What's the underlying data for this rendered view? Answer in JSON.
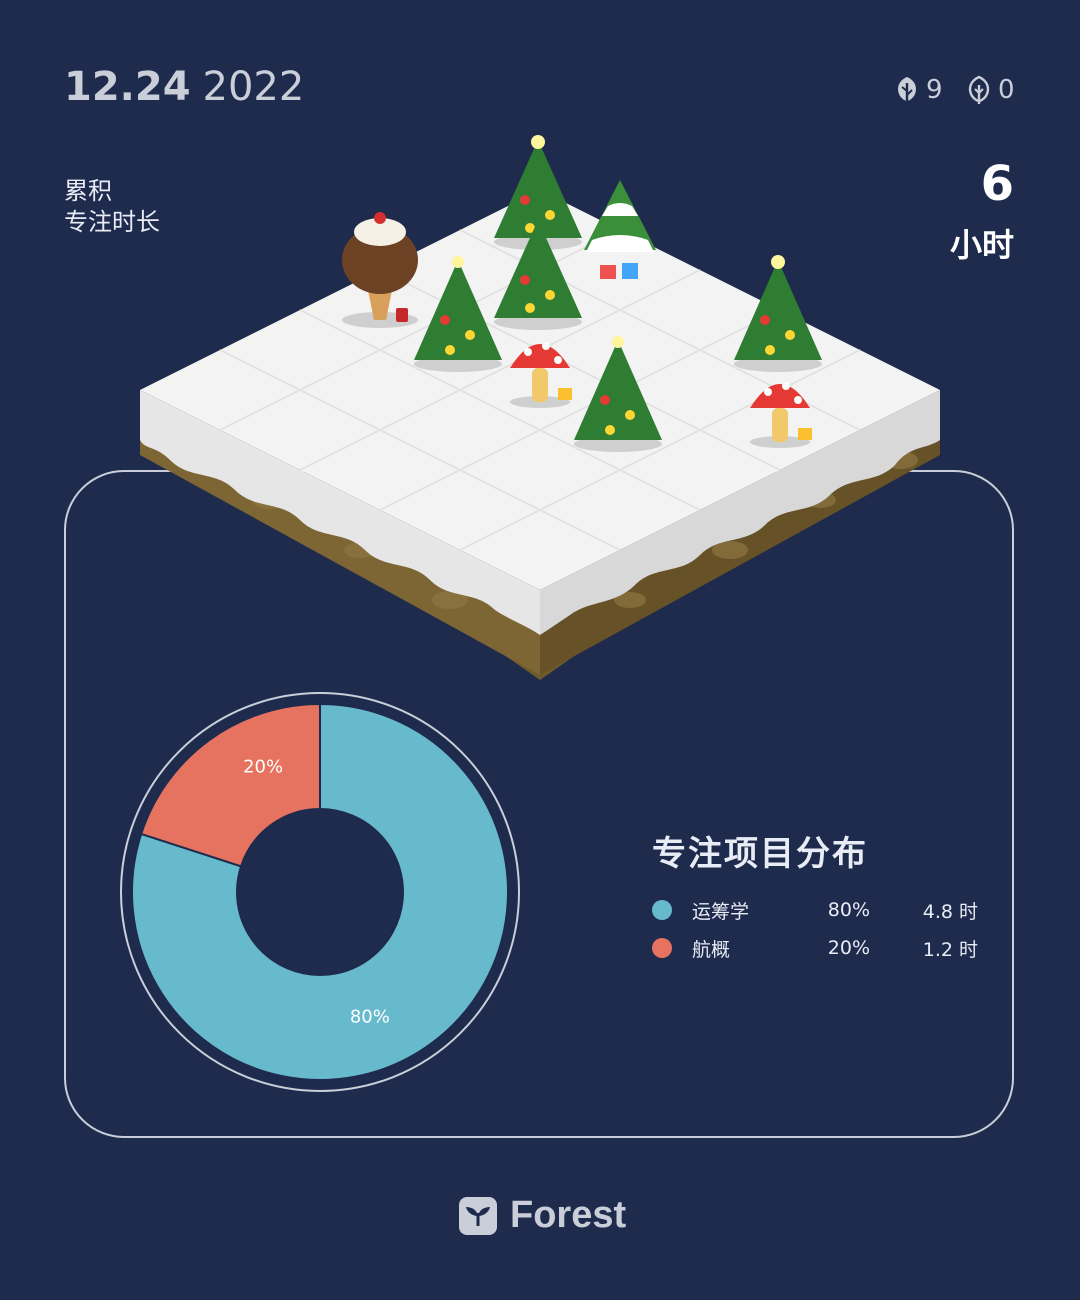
{
  "header": {
    "date": "12.24",
    "year": "2022",
    "healthy_trees": "9",
    "dead_trees": "0"
  },
  "summary": {
    "label_line1": "累积",
    "label_line2": "专注时长",
    "hours_value": "6",
    "hours_unit": "小时"
  },
  "distribution": {
    "title": "专注项目分布",
    "items": [
      {
        "name": "运筹学",
        "percent": "80%",
        "hours": "4.8 时",
        "color": "#67b9cc"
      },
      {
        "name": "航概",
        "percent": "20%",
        "hours": "1.2 时",
        "color": "#e5735f"
      }
    ]
  },
  "chart_data": {
    "type": "pie",
    "variant": "donut",
    "categories": [
      "运筹学",
      "航概"
    ],
    "values": [
      80,
      20
    ],
    "labels": [
      "80%",
      "20%"
    ],
    "colors": [
      "#67b9cc",
      "#e5735f"
    ]
  },
  "brand": {
    "name": "Forest"
  },
  "icons": {
    "healthy": "tree-icon",
    "dead": "dead-tree-icon",
    "brand": "forest-logo-icon"
  }
}
